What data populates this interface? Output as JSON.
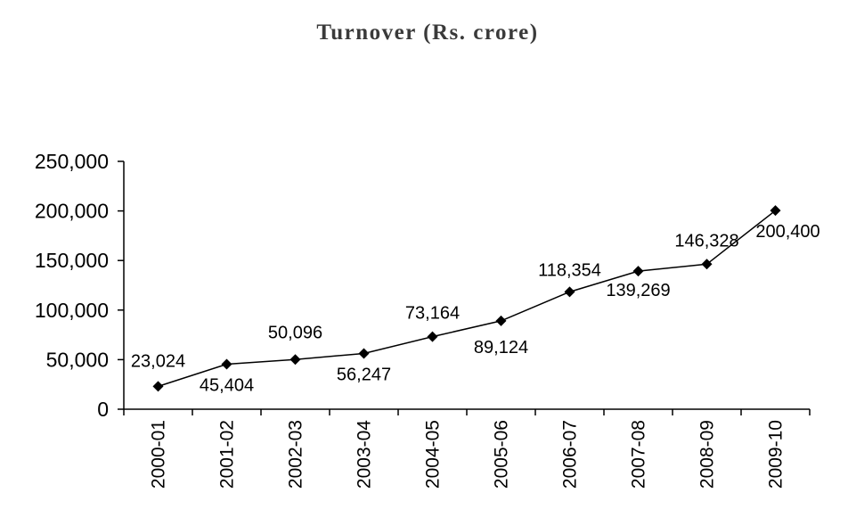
{
  "chart_data": {
    "type": "line",
    "title": "Turnover (Rs. crore)",
    "xlabel": "",
    "ylabel": "",
    "categories": [
      "2000-01",
      "2001-02",
      "2002-03",
      "2003-04",
      "2004-05",
      "2005-06",
      "2006-07",
      "2007-08",
      "2008-09",
      "2009-10"
    ],
    "values": [
      23024,
      45404,
      50096,
      56247,
      73164,
      89124,
      118354,
      139269,
      146328,
      200400
    ],
    "data_labels": [
      "23,024",
      "45,404",
      "50,096",
      "56,247",
      "73,164",
      "89,124",
      "118,354",
      "139,269",
      "146,328",
      "200,400"
    ],
    "yticks": [
      0,
      50000,
      100000,
      150000,
      200000,
      250000
    ],
    "ytick_labels": [
      "0",
      "50,000",
      "100,000",
      "150,000",
      "200,000",
      "250,000"
    ],
    "ylim": [
      0,
      250000
    ],
    "grid": false,
    "legend": "none",
    "marker": "diamond",
    "colors": {
      "line": "#000000",
      "marker": "#000000",
      "title": "#3a3a3a"
    }
  }
}
